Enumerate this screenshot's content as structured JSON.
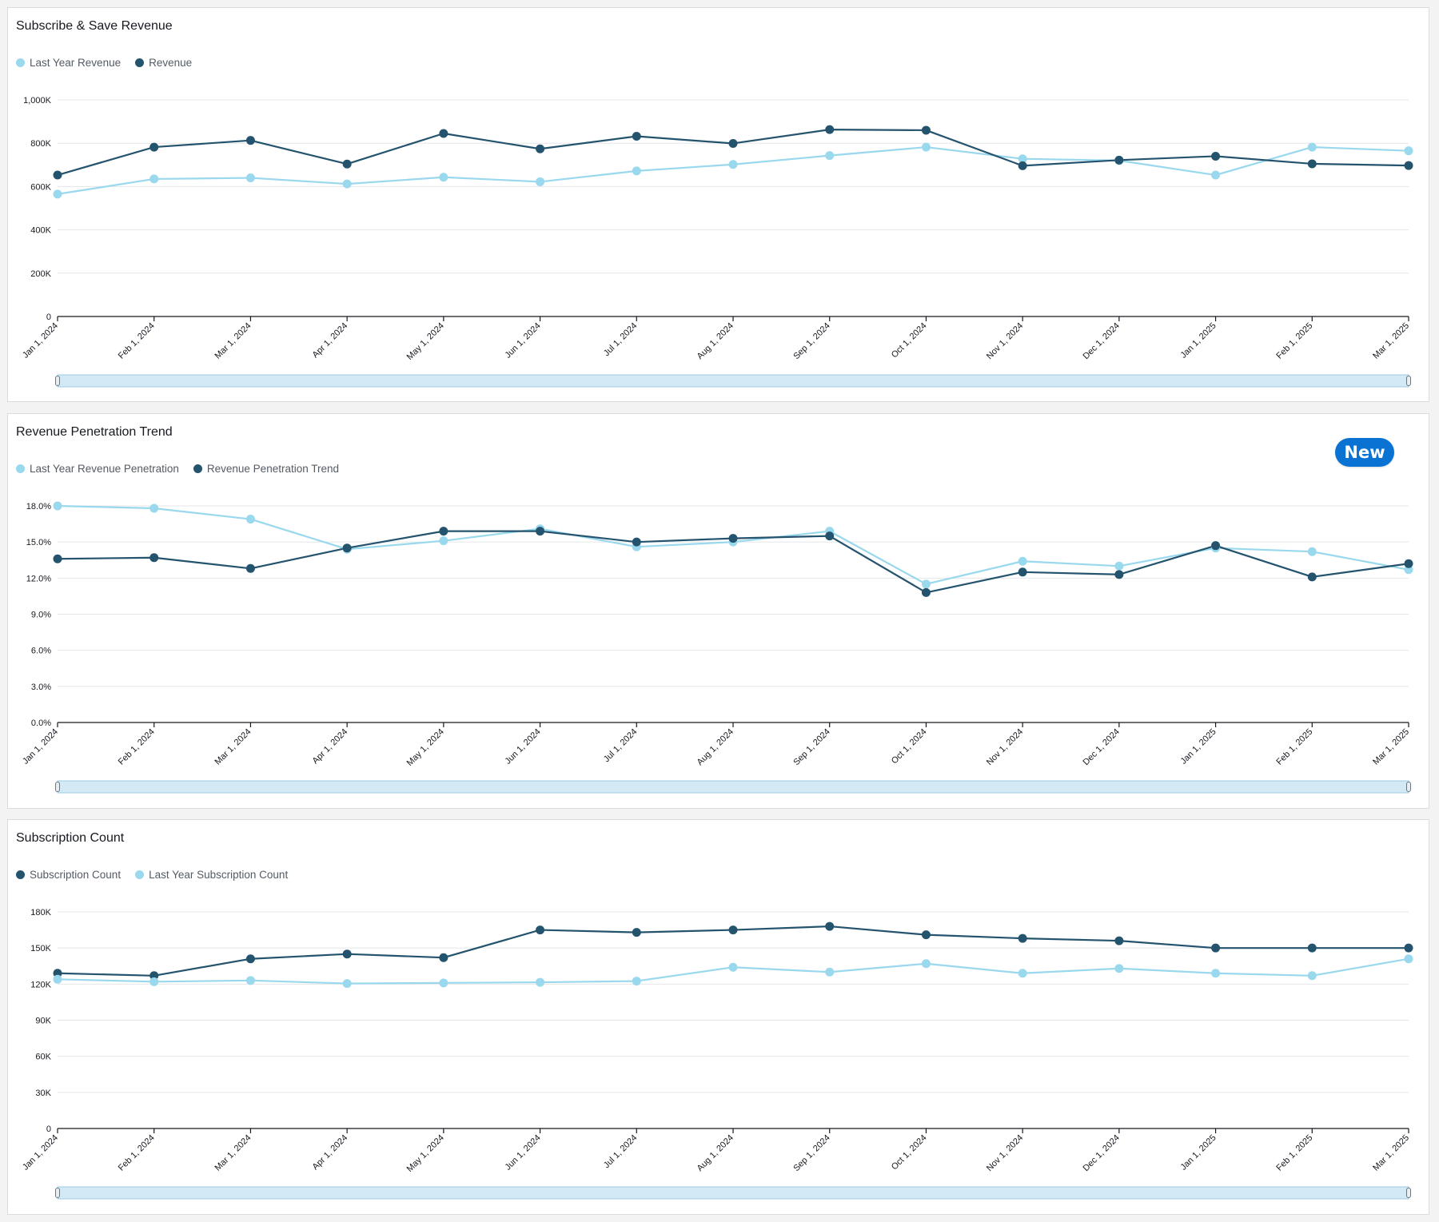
{
  "colors": {
    "dark_series": "#24536e",
    "light_series": "#99d8ed",
    "grid": "#e4e6e8",
    "axis": "#16191f",
    "scrollbar_fill": "#d3e9f5",
    "scrollbar_border": "#9fcbe4",
    "new_badge": "#0972d3"
  },
  "new_badge": {
    "label": "New"
  },
  "chart_data": [
    {
      "id": "revenue",
      "type": "line",
      "title": "Subscribe & Save Revenue",
      "categories": [
        "Jan 1, 2024",
        "Feb 1, 2024",
        "Mar 1, 2024",
        "Apr 1, 2024",
        "May 1, 2024",
        "Jun 1, 2024",
        "Jul 1, 2024",
        "Aug 1, 2024",
        "Sep 1, 2024",
        "Oct 1, 2024",
        "Nov 1, 2024",
        "Dec 1, 2024",
        "Jan 1, 2025",
        "Feb 1, 2025",
        "Mar 1, 2025"
      ],
      "yticks": [
        0,
        200000,
        400000,
        600000,
        800000,
        1000000
      ],
      "ytick_labels": [
        "0",
        "200K",
        "400K",
        "600K",
        "800K",
        "1,000K"
      ],
      "ylim": [
        0,
        1000000
      ],
      "xlabel": "",
      "ylabel": "",
      "legend_position": "top-left",
      "series": [
        {
          "name": "Last Year Revenue",
          "color": "light",
          "values": [
            565000,
            635000,
            640000,
            612000,
            643000,
            622000,
            672000,
            702000,
            743000,
            782000,
            728000,
            720000,
            653000,
            782000,
            765000
          ]
        },
        {
          "name": "Revenue",
          "color": "dark",
          "values": [
            653000,
            782000,
            813000,
            704000,
            845000,
            774000,
            832000,
            799000,
            863000,
            860000,
            696000,
            722000,
            740000,
            705000,
            697000
          ]
        }
      ]
    },
    {
      "id": "penetration",
      "type": "line",
      "title": "Revenue Penetration Trend",
      "categories": [
        "Jan 1, 2024",
        "Feb 1, 2024",
        "Mar 1, 2024",
        "Apr 1, 2024",
        "May 1, 2024",
        "Jun 1, 2024",
        "Jul 1, 2024",
        "Aug 1, 2024",
        "Sep 1, 2024",
        "Oct 1, 2024",
        "Nov 1, 2024",
        "Dec 1, 2024",
        "Jan 1, 2025",
        "Feb 1, 2025",
        "Mar 1, 2025"
      ],
      "yticks": [
        0,
        3,
        6,
        9,
        12,
        15,
        18
      ],
      "ytick_labels": [
        "0.0%",
        "3.0%",
        "6.0%",
        "9.0%",
        "12.0%",
        "15.0%",
        "18.0%"
      ],
      "ylim": [
        0,
        18
      ],
      "xlabel": "",
      "ylabel": "",
      "legend_position": "top-left",
      "series": [
        {
          "name": "Last Year Revenue Penetration",
          "color": "light",
          "values": [
            18.0,
            17.8,
            16.9,
            14.4,
            15.1,
            16.1,
            14.6,
            15.0,
            15.9,
            11.5,
            13.4,
            13.0,
            14.5,
            14.2,
            12.7
          ]
        },
        {
          "name": "Revenue Penetration Trend",
          "color": "dark",
          "values": [
            13.6,
            13.7,
            12.8,
            14.5,
            15.9,
            15.9,
            15.0,
            15.3,
            15.5,
            10.8,
            12.5,
            12.3,
            14.7,
            12.1,
            13.2
          ]
        }
      ]
    },
    {
      "id": "subscriptions",
      "type": "line",
      "title": "Subscription Count",
      "categories": [
        "Jan 1, 2024",
        "Feb 1, 2024",
        "Mar 1, 2024",
        "Apr 1, 2024",
        "May 1, 2024",
        "Jun 1, 2024",
        "Jul 1, 2024",
        "Aug 1, 2024",
        "Sep 1, 2024",
        "Oct 1, 2024",
        "Nov 1, 2024",
        "Dec 1, 2024",
        "Jan 1, 2025",
        "Feb 1, 2025",
        "Mar 1, 2025"
      ],
      "yticks": [
        0,
        30000,
        60000,
        90000,
        120000,
        150000,
        180000
      ],
      "ytick_labels": [
        "0",
        "30K",
        "60K",
        "90K",
        "120K",
        "150K",
        "180K"
      ],
      "ylim": [
        0,
        180000
      ],
      "xlabel": "",
      "ylabel": "",
      "legend_position": "top-left",
      "series": [
        {
          "name": "Subscription Count",
          "color": "dark",
          "values": [
            129000,
            127000,
            141000,
            145000,
            142000,
            165000,
            163000,
            165000,
            168000,
            161000,
            158000,
            156000,
            150000,
            150000,
            150000
          ]
        },
        {
          "name": "Last Year Subscription Count",
          "color": "light",
          "values": [
            124000,
            122000,
            123000,
            120500,
            121000,
            121500,
            122500,
            134000,
            130000,
            137000,
            129000,
            133000,
            129000,
            127000,
            141000
          ]
        }
      ]
    }
  ]
}
